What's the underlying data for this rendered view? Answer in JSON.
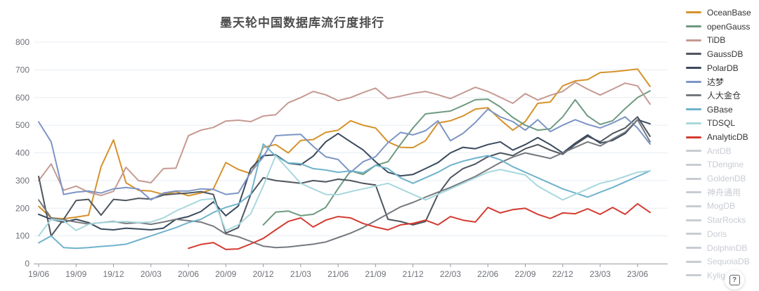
{
  "title": "墨天轮中国数据库流行度排行",
  "help_button": {
    "label": "?"
  },
  "axis": {
    "y_ticks": [
      0,
      100,
      200,
      300,
      400,
      500,
      600,
      700,
      800
    ],
    "x_tick_labels": [
      "19/06",
      "19/09",
      "19/12",
      "20/03",
      "20/06",
      "20/09",
      "20/12",
      "21/03",
      "21/06",
      "21/09",
      "21/12",
      "22/03",
      "22/06",
      "22/09",
      "22/12",
      "23/03",
      "23/06"
    ]
  },
  "colors": {
    "grid": "#e8eef4",
    "axis_line": "#999ca3",
    "tick_text": "#6e7079",
    "title_text": "#4d4d4d",
    "inactive_legend": "#c8ccd3"
  },
  "chart_data": {
    "type": "line",
    "title": "墨天轮中国数据库流行度排行",
    "xlabel": "",
    "ylabel": "",
    "ylim": [
      0,
      800
    ],
    "grid": true,
    "legend_position": "right",
    "x": [
      "19/06",
      "19/07",
      "19/08",
      "19/09",
      "19/10",
      "19/11",
      "19/12",
      "20/01",
      "20/02",
      "20/03",
      "20/04",
      "20/05",
      "20/06",
      "20/07",
      "20/08",
      "20/09",
      "20/10",
      "20/11",
      "20/12",
      "21/01",
      "21/02",
      "21/03",
      "21/04",
      "21/05",
      "21/06",
      "21/07",
      "21/08",
      "21/09",
      "21/10",
      "21/11",
      "21/12",
      "22/01",
      "22/02",
      "22/03",
      "22/04",
      "22/05",
      "22/06",
      "22/07",
      "22/08",
      "22/09",
      "22/10",
      "22/11",
      "22/12",
      "23/01",
      "23/02",
      "23/03",
      "23/04",
      "23/05",
      "23/06",
      "23/07"
    ],
    "series": [
      {
        "name": "OceanBase",
        "color": "#d6922b",
        "active": true,
        "values": [
          207,
          165,
          162,
          168,
          175,
          350,
          447,
          292,
          265,
          262,
          250,
          260,
          245,
          255,
          270,
          365,
          340,
          325,
          420,
          430,
          400,
          445,
          448,
          474,
          482,
          516,
          500,
          490,
          440,
          420,
          419,
          444,
          508,
          516,
          533,
          558,
          563,
          520,
          482,
          513,
          579,
          584,
          642,
          660,
          665,
          690,
          693,
          698,
          703,
          640
        ]
      },
      {
        "name": "openGauss",
        "color": "#6e9a80",
        "active": true,
        "values": [
          null,
          null,
          null,
          null,
          null,
          null,
          null,
          null,
          null,
          null,
          null,
          null,
          null,
          null,
          null,
          null,
          null,
          null,
          140,
          186,
          190,
          173,
          178,
          203,
          271,
          335,
          322,
          355,
          368,
          431,
          490,
          541,
          546,
          551,
          571,
          592,
          594,
          566,
          528,
          500,
          482,
          487,
          530,
          592,
          533,
          503,
          516,
          560,
          600,
          624
        ]
      },
      {
        "name": "TiDB",
        "color": "#c59a91",
        "active": true,
        "values": [
          300,
          360,
          265,
          280,
          258,
          246,
          261,
          348,
          300,
          292,
          343,
          345,
          462,
          482,
          492,
          515,
          518,
          513,
          533,
          538,
          581,
          600,
          622,
          610,
          589,
          600,
          618,
          634,
          596,
          605,
          615,
          622,
          610,
          596,
          617,
          637,
          622,
          601,
          579,
          614,
          591,
          608,
          622,
          655,
          630,
          609,
          630,
          652,
          642,
          576
        ]
      },
      {
        "name": "GaussDB",
        "color": "#4e565e",
        "active": true,
        "values": [
          315,
          100,
          160,
          228,
          232,
          175,
          232,
          228,
          236,
          233,
          248,
          252,
          255,
          260,
          250,
          110,
          130,
          250,
          310,
          300,
          295,
          290,
          300,
          295,
          305,
          300,
          290,
          284,
          160,
          152,
          140,
          152,
          250,
          310,
          343,
          360,
          386,
          400,
          390,
          415,
          430,
          410,
          395,
          430,
          460,
          440,
          470,
          490,
          530,
          460
        ]
      },
      {
        "name": "PolarDB",
        "color": "#3a4a5e",
        "active": true,
        "values": [
          178,
          160,
          150,
          160,
          148,
          125,
          122,
          128,
          125,
          122,
          128,
          160,
          170,
          188,
          223,
          173,
          208,
          343,
          390,
          393,
          363,
          357,
          388,
          440,
          470,
          440,
          411,
          368,
          330,
          317,
          322,
          343,
          365,
          400,
          420,
          415,
          430,
          440,
          410,
          430,
          455,
          430,
          400,
          435,
          465,
          435,
          445,
          470,
          520,
          505
        ]
      },
      {
        "name": "达梦",
        "color": "#7d95c5",
        "active": true,
        "values": [
          512,
          440,
          250,
          258,
          262,
          255,
          270,
          275,
          270,
          230,
          255,
          262,
          262,
          270,
          268,
          250,
          255,
          330,
          385,
          462,
          465,
          467,
          424,
          386,
          376,
          330,
          368,
          386,
          437,
          474,
          465,
          480,
          516,
          444,
          470,
          510,
          558,
          530,
          513,
          482,
          520,
          477,
          500,
          520,
          503,
          490,
          508,
          530,
          490,
          432
        ]
      },
      {
        "name": "人大金仓",
        "color": "#75797e",
        "active": true,
        "values": [
          230,
          165,
          158,
          150,
          143,
          148,
          152,
          145,
          148,
          142,
          150,
          160,
          155,
          150,
          135,
          107,
          97,
          80,
          63,
          58,
          60,
          65,
          70,
          78,
          94,
          110,
          130,
          155,
          180,
          205,
          221,
          240,
          258,
          275,
          295,
          315,
          340,
          365,
          385,
          400,
          390,
          380,
          400,
          420,
          440,
          425,
          450,
          475,
          520,
          440
        ]
      },
      {
        "name": "GBase",
        "color": "#6fb3cc",
        "active": true,
        "values": [
          75,
          100,
          58,
          55,
          58,
          62,
          65,
          70,
          85,
          100,
          115,
          130,
          148,
          160,
          185,
          203,
          216,
          250,
          432,
          388,
          364,
          361,
          343,
          338,
          330,
          335,
          328,
          355,
          343,
          310,
          290,
          310,
          330,
          355,
          370,
          381,
          390,
          375,
          350,
          330,
          310,
          290,
          270,
          255,
          240,
          258,
          275,
          295,
          315,
          335
        ]
      },
      {
        "name": "TDSQL",
        "color": "#a8d8de",
        "active": true,
        "values": [
          100,
          160,
          155,
          120,
          142,
          148,
          150,
          152,
          148,
          150,
          165,
          190,
          210,
          230,
          235,
          119,
          140,
          180,
          280,
          390,
          340,
          290,
          270,
          250,
          249,
          260,
          270,
          280,
          290,
          270,
          250,
          230,
          250,
          270,
          290,
          310,
          330,
          340,
          330,
          320,
          280,
          255,
          230,
          250,
          270,
          290,
          300,
          315,
          330,
          335
        ]
      },
      {
        "name": "AnalyticDB",
        "color": "#d43b31",
        "active": true,
        "values": [
          null,
          null,
          null,
          null,
          null,
          null,
          null,
          null,
          null,
          null,
          null,
          null,
          55,
          69,
          76,
          51,
          53,
          71,
          91,
          122,
          152,
          165,
          132,
          157,
          170,
          165,
          145,
          132,
          122,
          140,
          145,
          157,
          140,
          170,
          157,
          150,
          203,
          183,
          195,
          200,
          178,
          163,
          183,
          180,
          198,
          178,
          203,
          178,
          216,
          185
        ]
      },
      {
        "name": "AntDB",
        "color": "#c8ccd3",
        "active": false,
        "values": []
      },
      {
        "name": "TDengine",
        "color": "#c8ccd3",
        "active": false,
        "values": []
      },
      {
        "name": "GoldenDB",
        "color": "#c8ccd3",
        "active": false,
        "values": []
      },
      {
        "name": "神舟通用",
        "color": "#c8ccd3",
        "active": false,
        "values": []
      },
      {
        "name": "MogDB",
        "color": "#c8ccd3",
        "active": false,
        "values": []
      },
      {
        "name": "StarRocks",
        "color": "#c8ccd3",
        "active": false,
        "values": []
      },
      {
        "name": "Doris",
        "color": "#c8ccd3",
        "active": false,
        "values": []
      },
      {
        "name": "DolphinDB",
        "color": "#c8ccd3",
        "active": false,
        "values": []
      },
      {
        "name": "SequoiaDB",
        "color": "#c8ccd3",
        "active": false,
        "values": []
      },
      {
        "name": "Kyligence",
        "color": "#c8ccd3",
        "active": false,
        "values": []
      }
    ]
  }
}
